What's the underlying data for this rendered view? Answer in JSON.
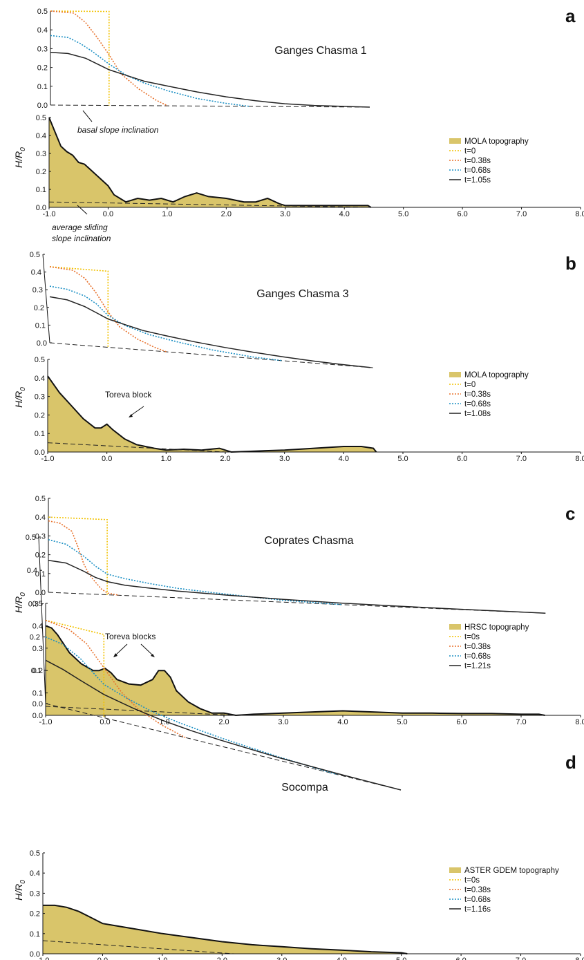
{
  "figure": {
    "ylabel": "H/R",
    "ylabel_sub": "0",
    "xticks": [
      "-1.0",
      "0.0",
      "1.0",
      "2.0",
      "3.0",
      "4.0",
      "5.0",
      "6.0",
      "7.0",
      "8.0"
    ],
    "yticks": [
      "0.0",
      "0.1",
      "0.2",
      "0.3",
      "0.4",
      "0.5"
    ]
  },
  "colors": {
    "topography_fill": "#d9c56a",
    "t0": "#f2c200",
    "t038": "#e8702a",
    "t068": "#1a8fc4",
    "tfinal": "#222222"
  },
  "chart_data": [
    {
      "type": "area",
      "panel": "a",
      "title": "Ganges Chasma 1",
      "xlim": [
        -1.0,
        8.0
      ],
      "ylim": [
        0,
        0.5
      ],
      "annotations": [
        "basal slope inclination",
        "average sliding",
        "slope inclination"
      ],
      "legend": [
        "MOLA topography",
        "t=0",
        "t=0.38s",
        "t=0.68s",
        "t=1.05s"
      ],
      "topography": {
        "x": [
          -1.0,
          -0.9,
          -0.8,
          -0.7,
          -0.6,
          -0.5,
          -0.4,
          -0.3,
          -0.2,
          -0.1,
          0.0,
          0.1,
          0.2,
          0.3,
          0.5,
          0.7,
          0.9,
          1.1,
          1.3,
          1.5,
          1.7,
          2.0,
          2.3,
          2.5,
          2.7,
          2.9,
          3.0,
          3.2,
          3.5,
          3.8,
          4.0,
          4.2,
          4.4,
          4.45
        ],
        "y": [
          0.5,
          0.42,
          0.34,
          0.31,
          0.29,
          0.25,
          0.24,
          0.21,
          0.18,
          0.15,
          0.12,
          0.07,
          0.05,
          0.03,
          0.05,
          0.04,
          0.05,
          0.03,
          0.06,
          0.08,
          0.06,
          0.05,
          0.03,
          0.03,
          0.05,
          0.02,
          0.01,
          0.01,
          0.01,
          0.01,
          0.01,
          0.01,
          0.01,
          0.0
        ]
      },
      "sliding_slope": {
        "x": [
          -1.0,
          4.4
        ],
        "y": [
          0.03,
          0.0
        ]
      },
      "simulation": [
        {
          "name": "t=0",
          "x": [
            -1.0,
            0.0,
            0.0
          ],
          "y": [
            0.5,
            0.5,
            0.0
          ]
        },
        {
          "name": "t=0.38s",
          "x": [
            -1.0,
            -0.6,
            -0.4,
            -0.2,
            0.0,
            0.2,
            0.5,
            0.8,
            1.0
          ],
          "y": [
            0.5,
            0.49,
            0.44,
            0.36,
            0.27,
            0.17,
            0.09,
            0.03,
            0.0
          ]
        },
        {
          "name": "t=0.68s",
          "x": [
            -1.0,
            -0.7,
            -0.5,
            -0.3,
            0.0,
            0.3,
            0.6,
            1.0,
            1.5,
            2.0,
            2.4
          ],
          "y": [
            0.37,
            0.36,
            0.33,
            0.29,
            0.22,
            0.16,
            0.12,
            0.08,
            0.04,
            0.015,
            0.0
          ]
        },
        {
          "name": "t=1.05s",
          "x": [
            -1.0,
            -0.7,
            -0.4,
            -0.2,
            0.0,
            0.3,
            0.6,
            1.0,
            1.5,
            2.0,
            2.5,
            3.0,
            3.5,
            4.0,
            4.45
          ],
          "y": [
            0.28,
            0.275,
            0.25,
            0.22,
            0.19,
            0.16,
            0.13,
            0.105,
            0.075,
            0.05,
            0.03,
            0.015,
            0.007,
            0.003,
            0.0
          ]
        }
      ]
    },
    {
      "type": "area",
      "panel": "b",
      "title": "Ganges Chasma 3",
      "xlim": [
        -1.0,
        8.0
      ],
      "ylim": [
        0,
        0.5
      ],
      "annotations": [
        "Toreva block"
      ],
      "legend": [
        "MOLA topography",
        "t=0",
        "t=0.38s",
        "t=0.68s",
        "t=1.08s"
      ],
      "topography": {
        "x": [
          -1.0,
          -0.8,
          -0.6,
          -0.4,
          -0.2,
          -0.1,
          0.0,
          0.1,
          0.3,
          0.5,
          0.8,
          1.0,
          1.3,
          1.6,
          1.9,
          2.1,
          2.5,
          3.0,
          3.5,
          4.0,
          4.3,
          4.5,
          4.55
        ],
        "y": [
          0.41,
          0.32,
          0.25,
          0.18,
          0.13,
          0.13,
          0.15,
          0.12,
          0.07,
          0.04,
          0.02,
          0.01,
          0.015,
          0.01,
          0.02,
          0.0,
          0.005,
          0.01,
          0.02,
          0.03,
          0.03,
          0.02,
          0.0
        ]
      },
      "sliding_slope": {
        "x": [
          -1.0,
          2.0
        ],
        "y": [
          0.05,
          0.0
        ]
      },
      "simulation": [
        {
          "name": "t=0",
          "x": [
            -1.0,
            0.0,
            0.0
          ],
          "y": [
            0.43,
            0.43,
            0.0
          ]
        },
        {
          "name": "t=0.38s",
          "x": [
            -1.0,
            -0.6,
            -0.4,
            -0.2,
            0.0,
            0.2,
            0.5,
            0.8,
            1.0
          ],
          "y": [
            0.43,
            0.42,
            0.38,
            0.3,
            0.2,
            0.12,
            0.06,
            0.02,
            0.0
          ]
        },
        {
          "name": "t=0.68s",
          "x": [
            -1.0,
            -0.7,
            -0.4,
            -0.2,
            0.0,
            0.3,
            0.7,
            1.2,
            1.8,
            2.5,
            3.0
          ],
          "y": [
            0.32,
            0.31,
            0.28,
            0.24,
            0.18,
            0.13,
            0.09,
            0.06,
            0.03,
            0.008,
            0.0
          ]
        },
        {
          "name": "t=1.08s",
          "x": [
            -1.0,
            -0.7,
            -0.4,
            -0.2,
            0.0,
            0.3,
            0.6,
            1.0,
            1.5,
            2.0,
            2.5,
            3.0,
            3.5,
            4.0,
            4.5
          ],
          "y": [
            0.26,
            0.25,
            0.22,
            0.19,
            0.16,
            0.135,
            0.11,
            0.09,
            0.068,
            0.05,
            0.035,
            0.022,
            0.012,
            0.005,
            0.0
          ]
        }
      ]
    },
    {
      "type": "area",
      "panel": "c",
      "title": "Coprates Chasma",
      "xlim": [
        -1.0,
        8.0
      ],
      "ylim": [
        0,
        0.5
      ],
      "annotations": [
        "Toreva blocks"
      ],
      "legend": [
        "HRSC topography",
        "t=0s",
        "t=0.38s",
        "t=0.68s",
        "t=1.21s"
      ],
      "topography": {
        "x": [
          -1.0,
          -0.9,
          -0.8,
          -0.7,
          -0.6,
          -0.4,
          -0.2,
          -0.1,
          0.0,
          0.1,
          0.2,
          0.4,
          0.6,
          0.8,
          0.9,
          1.0,
          1.1,
          1.2,
          1.4,
          1.6,
          1.8,
          2.0,
          2.2,
          2.5,
          3.0,
          3.5,
          4.0,
          4.5,
          5.0,
          5.5,
          6.0,
          6.5,
          7.0,
          7.3,
          7.4
        ],
        "y": [
          0.4,
          0.39,
          0.36,
          0.32,
          0.28,
          0.23,
          0.2,
          0.2,
          0.21,
          0.19,
          0.16,
          0.14,
          0.135,
          0.16,
          0.2,
          0.2,
          0.17,
          0.11,
          0.06,
          0.03,
          0.01,
          0.01,
          0.0,
          0.005,
          0.01,
          0.015,
          0.02,
          0.015,
          0.01,
          0.01,
          0.008,
          0.008,
          0.005,
          0.005,
          0.0
        ]
      },
      "sliding_slope": {
        "x": [
          -1.0,
          2.2
        ],
        "y": [
          0.04,
          0.0
        ]
      },
      "simulation": [
        {
          "name": "t=0s",
          "x": [
            -1.0,
            0.0,
            0.0
          ],
          "y": [
            0.4,
            0.4,
            0.0
          ]
        },
        {
          "name": "t=0.38s",
          "x": [
            -1.0,
            -0.8,
            -0.6,
            -0.5,
            -0.4,
            -0.3,
            -0.1,
            0.0,
            0.2
          ],
          "y": [
            0.38,
            0.37,
            0.33,
            0.25,
            0.16,
            0.1,
            0.03,
            0.01,
            0.0
          ]
        },
        {
          "name": "t=0.68s",
          "x": [
            -1.0,
            -0.7,
            -0.4,
            -0.2,
            0.0,
            0.3,
            0.7,
            1.2,
            1.8,
            2.5,
            3.0,
            3.5,
            4.0
          ],
          "y": [
            0.28,
            0.26,
            0.2,
            0.15,
            0.11,
            0.09,
            0.07,
            0.05,
            0.035,
            0.02,
            0.01,
            0.005,
            0.0
          ]
        },
        {
          "name": "t=1.21s",
          "x": [
            -1.0,
            -0.7,
            -0.4,
            -0.2,
            0.0,
            0.3,
            0.7,
            1.2,
            2.0,
            3.0,
            4.0,
            5.0,
            6.0,
            7.0,
            7.45
          ],
          "y": [
            0.17,
            0.16,
            0.12,
            0.09,
            0.07,
            0.055,
            0.045,
            0.035,
            0.025,
            0.015,
            0.008,
            0.004,
            0.002,
            0.0005,
            0.0
          ]
        }
      ]
    },
    {
      "type": "area",
      "panel": "d",
      "title": "Socompa",
      "xlim": [
        -1.0,
        8.0
      ],
      "ylim": [
        0,
        0.5
      ],
      "annotations": [],
      "legend": [
        "ASTER GDEM topography",
        "t=0s",
        "t=0.38s",
        "t=0.68s",
        "t=1.16s"
      ],
      "topography": {
        "x": [
          -1.0,
          -0.8,
          -0.6,
          -0.4,
          -0.2,
          0.0,
          0.2,
          0.5,
          1.0,
          1.5,
          2.0,
          2.5,
          3.0,
          3.5,
          4.0,
          4.5,
          5.0,
          5.1
        ],
        "y": [
          0.24,
          0.24,
          0.23,
          0.21,
          0.18,
          0.15,
          0.14,
          0.125,
          0.1,
          0.08,
          0.06,
          0.045,
          0.035,
          0.025,
          0.018,
          0.01,
          0.005,
          0.0
        ]
      },
      "sliding_slope": {
        "x": [
          -1.0,
          2.2
        ],
        "y": [
          0.065,
          0.0
        ]
      },
      "simulation": [
        {
          "name": "t=0s",
          "x": [
            -1.0,
            0.0,
            0.0
          ],
          "y": [
            0.25,
            0.25,
            0.0
          ]
        },
        {
          "name": "t=0.38s",
          "x": [
            -1.0,
            -0.6,
            -0.3,
            0.0,
            0.3,
            0.6,
            1.0,
            1.4
          ],
          "y": [
            0.25,
            0.24,
            0.21,
            0.15,
            0.09,
            0.05,
            0.02,
            0.0
          ]
        },
        {
          "name": "t=0.68s",
          "x": [
            -1.0,
            -0.7,
            -0.4,
            -0.2,
            0.0,
            0.4,
            0.8,
            1.3,
            2.0,
            3.0,
            4.0
          ],
          "y": [
            0.2,
            0.19,
            0.16,
            0.13,
            0.1,
            0.075,
            0.055,
            0.04,
            0.025,
            0.01,
            0.0
          ]
        },
        {
          "name": "t=1.16s",
          "x": [
            -1.0,
            -0.7,
            -0.4,
            0.0,
            0.5,
            1.0,
            1.5,
            2.0,
            3.0,
            4.0,
            5.1
          ],
          "y": [
            0.13,
            0.115,
            0.095,
            0.07,
            0.05,
            0.035,
            0.025,
            0.018,
            0.008,
            0.003,
            0.0
          ]
        }
      ]
    }
  ]
}
